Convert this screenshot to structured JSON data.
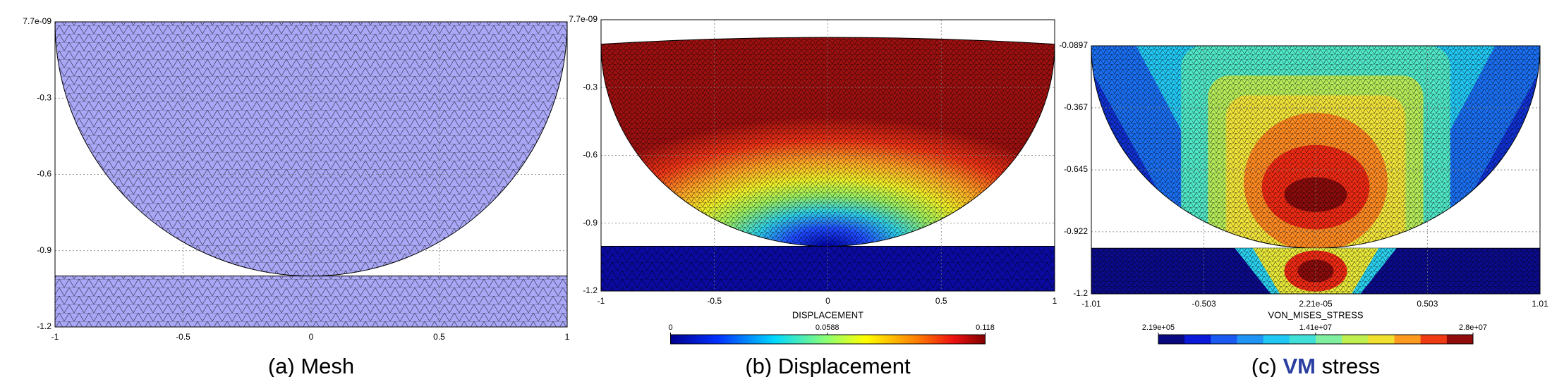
{
  "chart_data": [
    {
      "type": "mesh",
      "caption": [
        "(a)",
        "Mesh"
      ],
      "xlim": [
        -1,
        1
      ],
      "xticks": [
        -1,
        -0.5,
        0,
        0.5,
        1
      ],
      "ylim": [
        -1.2,
        7.7e-09
      ],
      "yticks": [
        {
          "value": 7.7e-09,
          "label": "7.7e-09"
        },
        -0.3,
        -0.6,
        -0.9,
        -1.2
      ],
      "grid": true
    },
    {
      "type": "displacement",
      "caption": [
        "(b)",
        "Displacement"
      ],
      "xlabel": "DISPLACEMENT",
      "xlim": [
        -1,
        1
      ],
      "xticks": [
        -1,
        -0.5,
        0,
        0.5,
        1
      ],
      "ylim": [
        -1.2,
        7.7e-09
      ],
      "yticks": [
        {
          "value": 7.7e-09,
          "label": "7.7e-09"
        },
        -0.3,
        -0.6,
        -0.9,
        -1.2
      ],
      "grid": true,
      "colorbar": {
        "clim": [
          0,
          0.118
        ],
        "ticks": [
          0,
          0.0588,
          0.118
        ]
      }
    },
    {
      "type": "stress",
      "caption": [
        "(c)",
        "VM",
        "stress"
      ],
      "xlabel": "VON_MISES_STRESS",
      "xlim": [
        -1.01,
        1.01
      ],
      "xticks": [
        -1.01,
        -0.503,
        {
          "value": 2.21e-05,
          "label": "2.21e-05"
        },
        0.503,
        1.01
      ],
      "ylim": [
        -1.2,
        -0.0897
      ],
      "yticks": [
        -0.0897,
        -0.367,
        -0.645,
        -0.922,
        -1.2
      ],
      "grid": true,
      "colorbar": {
        "clim": [
          219000,
          28000000
        ],
        "ticks": [
          {
            "value": 219000,
            "label": "2.19e+05"
          },
          {
            "value": 14100000,
            "label": "1.41e+07"
          },
          {
            "value": 28000000,
            "label": "2.8e+07"
          }
        ]
      }
    }
  ]
}
